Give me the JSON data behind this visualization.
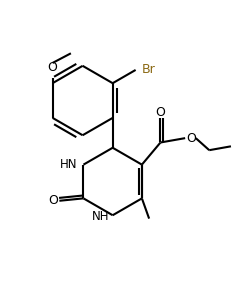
{
  "bg_color": "#ffffff",
  "line_color": "#000000",
  "bond_width": 1.5,
  "font_size": 8.5,
  "br_color": "#8B6914",
  "figsize": [
    2.52,
    2.83
  ],
  "dpi": 100,
  "xlim": [
    0.0,
    5.2
  ],
  "ylim": [
    0.0,
    5.8
  ]
}
